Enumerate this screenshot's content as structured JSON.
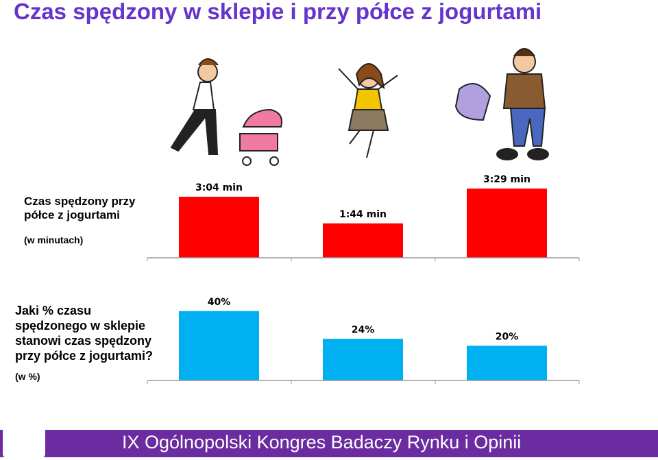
{
  "title": "Czas spędzony w sklepie i przy półce z  jogurtami",
  "footer": "IX Ogólnopolski Kongres Badaczy Rynku i Opinii",
  "chart_data": [
    {
      "type": "bar",
      "title": "Czas spędzony przy\npółce z jogurtami",
      "subtitle": "(w minutach)",
      "values": [
        3.07,
        1.73,
        3.48
      ],
      "value_labels": [
        "3:04 min",
        "1:44 min",
        "3:29 min"
      ],
      "color": "#ff0000"
    },
    {
      "type": "bar",
      "title": "Jaki % czasu\nspędzonego w sklepie\nstanowi czas spędzony\nprzy półce z jogurtami?",
      "subtitle": "(w %)",
      "values": [
        40,
        24,
        20
      ],
      "value_labels": [
        "40%",
        "24%",
        "20%"
      ],
      "color": "#00b0f0"
    }
  ]
}
